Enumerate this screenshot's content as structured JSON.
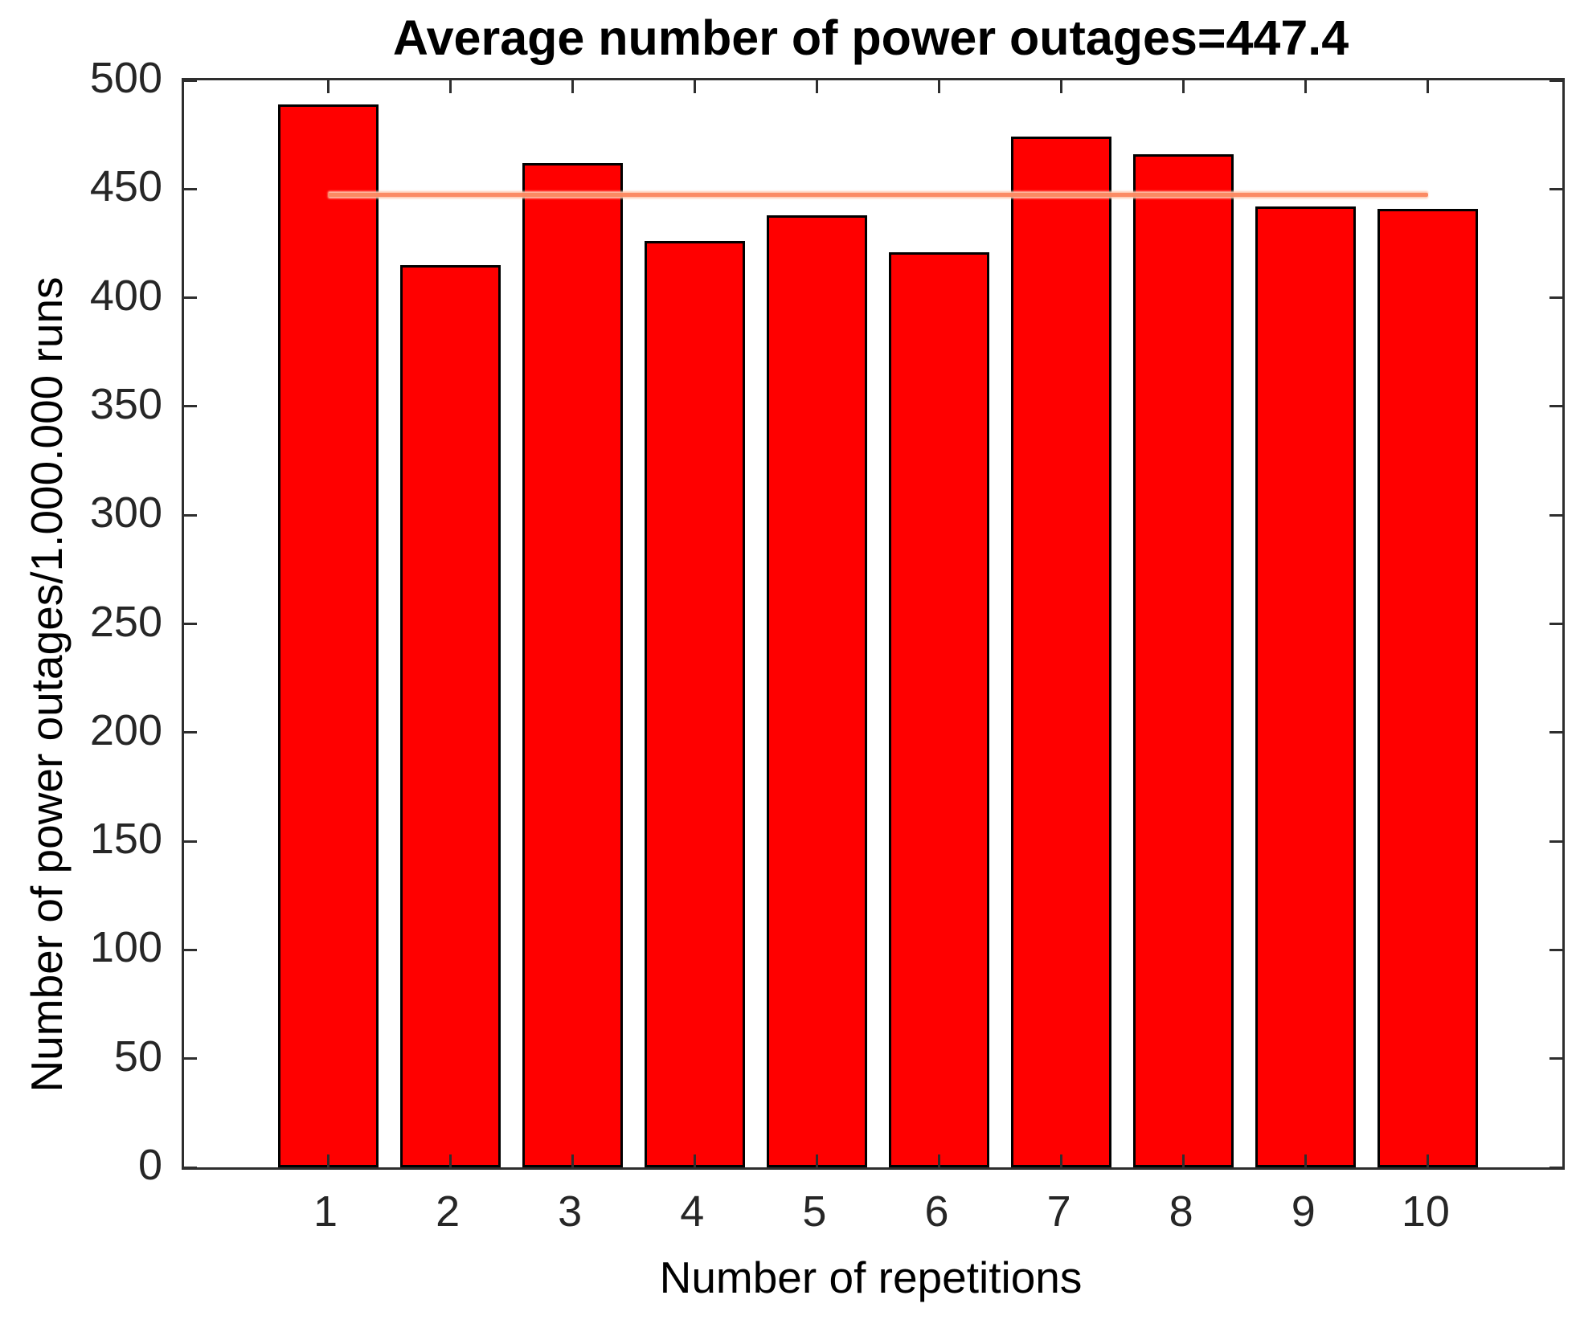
{
  "figure": {
    "title": "Average number of power outages=447.4",
    "xlabel": "Number of repetitions",
    "ylabel": "Number of power outages/1.000.000 runs"
  },
  "chart_data": {
    "type": "bar",
    "title": "Average number of power outages=447.4",
    "xlabel": "Number of repetitions",
    "ylabel": "Number of power outages/1.000.000 runs",
    "categories": [
      "1",
      "2",
      "3",
      "4",
      "5",
      "6",
      "7",
      "8",
      "9",
      "10"
    ],
    "values": [
      489,
      415,
      462,
      426,
      438,
      421,
      474,
      466,
      442,
      441
    ],
    "ylim": [
      0,
      500
    ],
    "ytick_step": 50,
    "ytick_labels": [
      "0",
      "50",
      "100",
      "150",
      "200",
      "250",
      "300",
      "350",
      "400",
      "450",
      "500"
    ],
    "mean_line": {
      "value": 447.4,
      "x_start_category": "1",
      "x_end_category": "10",
      "color": "#fb8a63",
      "halo_color": "#ffc9b0"
    },
    "bar_color": "#ff0000",
    "bar_edge_color": "#000000",
    "axis_color": "#2e2e2e",
    "tick_label_color": "#262626",
    "text_color": "#000000",
    "background_color": "#ffffff",
    "grid": false,
    "legend": null,
    "tick_direction": "in",
    "box": true
  }
}
